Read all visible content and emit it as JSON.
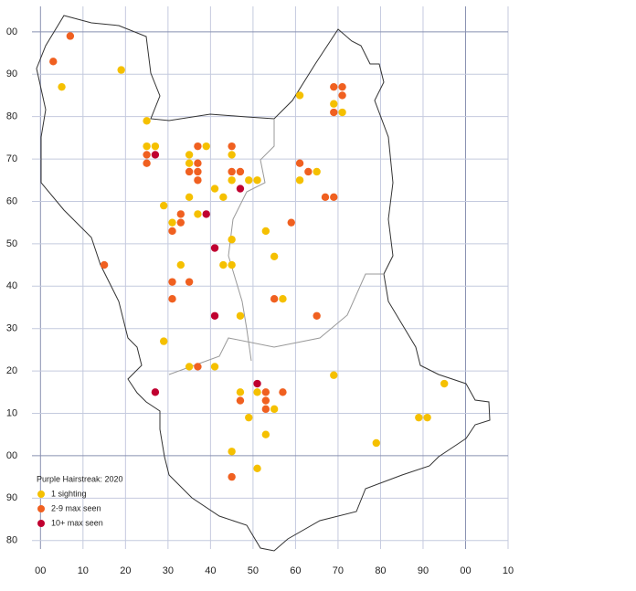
{
  "chart_data": {
    "type": "scatter",
    "title": "Purple Hairstreak:  2020",
    "xlim": [
      -2,
      110
    ],
    "ylim": [
      -22,
      106
    ],
    "xticks": [
      {
        "value": 0,
        "label": "00"
      },
      10,
      20,
      30,
      40,
      50,
      60,
      70,
      80,
      90,
      {
        "value": 100,
        "label": "00"
      },
      {
        "value": 110,
        "label": "10"
      }
    ],
    "yticks": [
      {
        "value": -20,
        "label": "80"
      },
      {
        "value": -10,
        "label": "90"
      },
      {
        "value": 0,
        "label": "00"
      },
      10,
      20,
      30,
      40,
      50,
      60,
      70,
      80,
      90,
      {
        "value": 100,
        "label": "00"
      }
    ],
    "grid": true,
    "series": [
      {
        "name": "1 sighting",
        "color": "#f5c000",
        "x": [
          5,
          19,
          25,
          25,
          27,
          35,
          39,
          45,
          35,
          41,
          49,
          51,
          45,
          65,
          61,
          61,
          69,
          71,
          35,
          43,
          29,
          31,
          37,
          53,
          45,
          55,
          33,
          43,
          45,
          57,
          47,
          29,
          35,
          41,
          69,
          47,
          51,
          49,
          55,
          53,
          45,
          51,
          95,
          89,
          91,
          79
        ],
        "values": [
          87,
          91,
          79,
          73,
          73,
          71,
          73,
          71,
          69,
          63,
          65,
          65,
          65,
          67,
          65,
          85,
          83,
          81,
          61,
          61,
          59,
          55,
          57,
          53,
          51,
          47,
          45,
          45,
          45,
          37,
          33,
          27,
          21,
          21,
          19,
          15,
          15,
          9,
          11,
          5,
          1,
          -3,
          17,
          9,
          9,
          3
        ]
      },
      {
        "name": "2-9 max seen",
        "color": "#f06020",
        "x": [
          7,
          3,
          25,
          25,
          45,
          37,
          37,
          37,
          35,
          37,
          45,
          47,
          61,
          63,
          67,
          69,
          69,
          71,
          71,
          69,
          33,
          33,
          31,
          59,
          15,
          31,
          35,
          31,
          55,
          65,
          37,
          53,
          47,
          53,
          53,
          57,
          45
        ],
        "values": [
          99,
          93,
          71,
          69,
          73,
          73,
          69,
          67,
          67,
          65,
          67,
          67,
          69,
          67,
          61,
          61,
          87,
          87,
          85,
          81,
          57,
          55,
          53,
          55,
          45,
          41,
          41,
          37,
          37,
          33,
          21,
          15,
          13,
          13,
          11,
          15,
          -5
        ]
      },
      {
        "name": "10+ max seen",
        "color": "#c00030",
        "x": [
          27,
          47,
          39,
          41,
          41,
          51,
          27
        ],
        "values": [
          71,
          63,
          57,
          49,
          33,
          17,
          15
        ]
      }
    ]
  }
}
